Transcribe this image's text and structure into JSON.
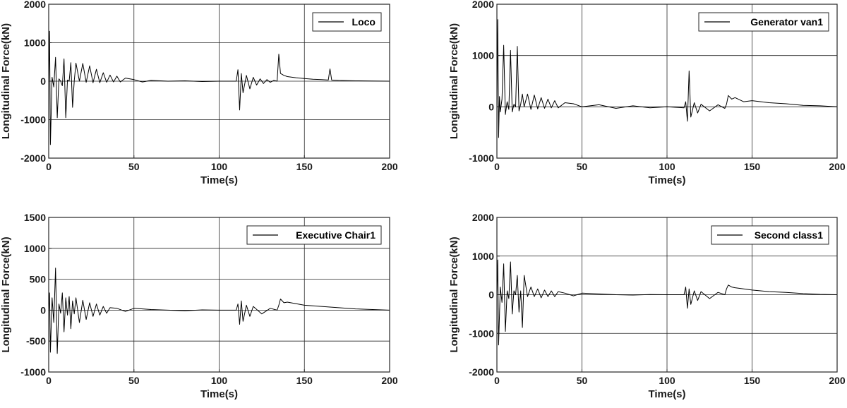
{
  "chart_data": [
    {
      "type": "line",
      "xlabel": "Time(s)",
      "ylabel": "Longitudinal Force(kN)",
      "xlim": [
        0,
        200
      ],
      "ylim": [
        -2000,
        2000
      ],
      "xticks": [
        "0",
        "50",
        "100",
        "150",
        "200"
      ],
      "yticks": [
        "-2000",
        "-1000",
        "0",
        "1000",
        "2000"
      ],
      "grid": true,
      "legend_position": "top-right",
      "series": [
        {
          "name": "Loco",
          "color": "#000000",
          "x": [
            0,
            0.5,
            1,
            2,
            3,
            4,
            5,
            6,
            7,
            8,
            9,
            10,
            11,
            12,
            13,
            14,
            15,
            16,
            18,
            20,
            22,
            24,
            26,
            28,
            30,
            32,
            34,
            36,
            38,
            40,
            42,
            45,
            50,
            55,
            60,
            70,
            80,
            90,
            100,
            110,
            111,
            112,
            113,
            114,
            116,
            118,
            120,
            122,
            124,
            126,
            128,
            130,
            132,
            134,
            135,
            136,
            138,
            140,
            145,
            150,
            155,
            160,
            164,
            165,
            166,
            170,
            180,
            190,
            200
          ],
          "values": [
            0,
            1300,
            -1650,
            100,
            -150,
            620,
            -950,
            60,
            0,
            -120,
            580,
            -950,
            30,
            0,
            480,
            -680,
            10,
            470,
            0,
            460,
            -30,
            400,
            -40,
            310,
            -40,
            220,
            -30,
            160,
            -20,
            130,
            -20,
            80,
            40,
            -20,
            20,
            0,
            10,
            -10,
            0,
            0,
            300,
            -750,
            200,
            -300,
            150,
            -200,
            100,
            -100,
            60,
            -60,
            40,
            -30,
            20,
            0,
            700,
            200,
            150,
            120,
            90,
            70,
            50,
            40,
            30,
            320,
            30,
            20,
            10,
            5,
            0
          ]
        }
      ]
    },
    {
      "type": "line",
      "xlabel": "Time(s)",
      "ylabel": "Longitudinal Force(kN)",
      "xlim": [
        0,
        200
      ],
      "ylim": [
        -1000,
        2000
      ],
      "xticks": [
        "0",
        "50",
        "100",
        "150",
        "200"
      ],
      "yticks": [
        "-1000",
        "0",
        "1000",
        "2000"
      ],
      "grid": true,
      "legend_position": "top-right",
      "series": [
        {
          "name": "Generator van1",
          "color": "#000000",
          "x": [
            0,
            0.5,
            1,
            1.5,
            2,
            3,
            4,
            5,
            6,
            7,
            8,
            9,
            10,
            11,
            12,
            13,
            14,
            15,
            16,
            18,
            20,
            22,
            24,
            26,
            28,
            30,
            32,
            34,
            36,
            40,
            45,
            50,
            60,
            70,
            80,
            90,
            100,
            110,
            111,
            112,
            113,
            114,
            116,
            118,
            120,
            125,
            130,
            134,
            135,
            136,
            138,
            140,
            145,
            150,
            160,
            170,
            180,
            190,
            200
          ],
          "values": [
            0,
            1700,
            -600,
            200,
            -100,
            150,
            1200,
            -150,
            100,
            -50,
            1100,
            -100,
            50,
            0,
            1180,
            -80,
            50,
            250,
            0,
            250,
            -50,
            230,
            -40,
            180,
            -30,
            150,
            -20,
            120,
            -20,
            80,
            60,
            0,
            40,
            -30,
            20,
            -20,
            0,
            -20,
            100,
            -280,
            700,
            -200,
            80,
            -120,
            50,
            -80,
            40,
            -30,
            50,
            220,
            150,
            180,
            100,
            120,
            80,
            60,
            30,
            20,
            0
          ]
        }
      ]
    },
    {
      "type": "line",
      "xlabel": "Time(s)",
      "ylabel": "Longitudinal Force(kN)",
      "xlim": [
        0,
        200
      ],
      "ylim": [
        -1000,
        1500
      ],
      "xticks": [
        "0",
        "50",
        "100",
        "150",
        "200"
      ],
      "yticks": [
        "-1000",
        "-500",
        "0",
        "500",
        "1000",
        "1500"
      ],
      "grid": true,
      "legend_position": "top-right",
      "series": [
        {
          "name": "Executive Chair1",
          "color": "#000000",
          "x": [
            0,
            0.5,
            1,
            2,
            3,
            4,
            5,
            6,
            7,
            8,
            9,
            10,
            11,
            12,
            13,
            14,
            15,
            16,
            18,
            20,
            22,
            24,
            26,
            28,
            30,
            32,
            34,
            36,
            40,
            45,
            50,
            60,
            70,
            80,
            90,
            100,
            110,
            111,
            112,
            113,
            114,
            116,
            118,
            120,
            125,
            130,
            134,
            135,
            136,
            138,
            140,
            150,
            160,
            170,
            180,
            190,
            200
          ],
          "values": [
            0,
            280,
            -680,
            200,
            -200,
            680,
            -700,
            100,
            -50,
            280,
            -350,
            200,
            -80,
            220,
            -300,
            150,
            -60,
            200,
            -200,
            160,
            -150,
            120,
            -100,
            100,
            -80,
            60,
            -50,
            40,
            30,
            -20,
            30,
            10,
            0,
            -10,
            5,
            0,
            0,
            100,
            -230,
            150,
            -180,
            80,
            -100,
            60,
            -60,
            30,
            0,
            80,
            180,
            120,
            130,
            80,
            60,
            40,
            20,
            10,
            0
          ]
        }
      ]
    },
    {
      "type": "line",
      "xlabel": "Time(s)",
      "ylabel": "Longitudinal Force(kN)",
      "xlim": [
        0,
        200
      ],
      "ylim": [
        -2000,
        2000
      ],
      "xticks": [
        "0",
        "50",
        "100",
        "150",
        "200"
      ],
      "yticks": [
        "-2000",
        "-1000",
        "0",
        "1000",
        "2000"
      ],
      "grid": true,
      "legend_position": "top-right",
      "series": [
        {
          "name": "Second class1",
          "color": "#000000",
          "x": [
            0,
            0.5,
            1,
            2,
            3,
            4,
            5,
            6,
            7,
            8,
            9,
            10,
            11,
            12,
            13,
            14,
            15,
            16,
            18,
            20,
            22,
            24,
            26,
            28,
            30,
            32,
            34,
            36,
            40,
            45,
            50,
            60,
            70,
            80,
            90,
            100,
            110,
            111,
            112,
            113,
            114,
            116,
            118,
            120,
            125,
            130,
            134,
            135,
            136,
            138,
            140,
            150,
            160,
            170,
            180,
            190,
            200
          ],
          "values": [
            0,
            900,
            -1300,
            200,
            -200,
            800,
            -950,
            100,
            -100,
            850,
            -500,
            100,
            0,
            500,
            -450,
            100,
            -850,
            500,
            -50,
            200,
            -50,
            150,
            -80,
            120,
            -50,
            100,
            -50,
            80,
            40,
            -30,
            40,
            20,
            0,
            -10,
            5,
            0,
            0,
            200,
            -350,
            150,
            -250,
            100,
            -150,
            80,
            -100,
            60,
            0,
            150,
            250,
            200,
            180,
            120,
            80,
            60,
            30,
            10,
            0
          ]
        }
      ]
    }
  ]
}
